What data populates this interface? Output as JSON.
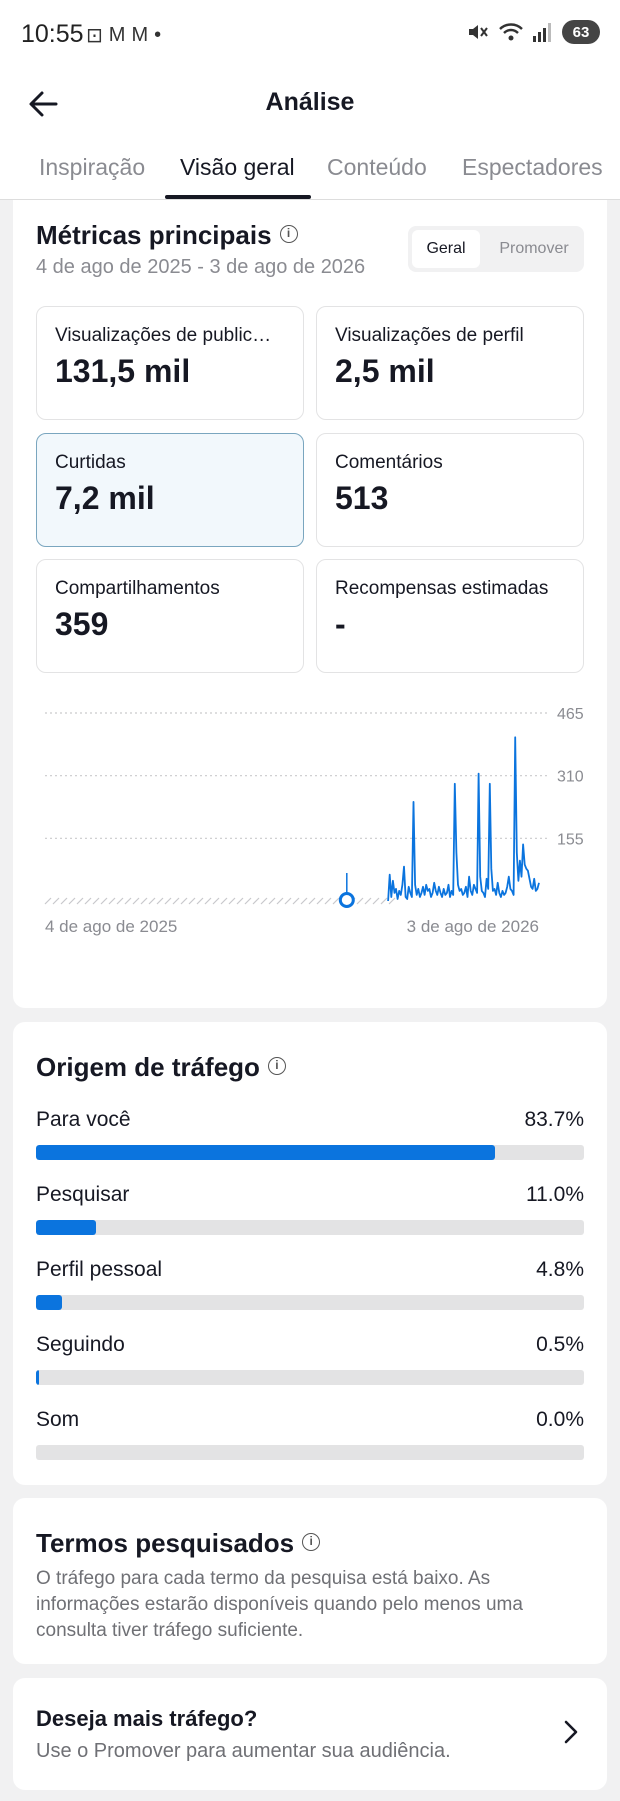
{
  "status": {
    "time": "10:55",
    "battery": "63",
    "left_icons": [
      "⊡",
      "M",
      "M",
      "•"
    ]
  },
  "header": {
    "title": "Análise"
  },
  "tabs": [
    {
      "label": "Inspiração",
      "active": false
    },
    {
      "label": "Visão geral",
      "active": true
    },
    {
      "label": "Conteúdo",
      "active": false
    },
    {
      "label": "Espectadores",
      "active": false
    }
  ],
  "metrics": {
    "title": "Métricas principais",
    "date_range": "4 de ago de 2025 - 3 de ago de 2026",
    "segment": {
      "on": "Geral",
      "off": "Promover"
    },
    "items": [
      {
        "label": "Visualizações de public…",
        "value": "131,5 mil",
        "selected": false
      },
      {
        "label": "Visualizações de perfil",
        "value": "2,5 mil",
        "selected": false
      },
      {
        "label": "Curtidas",
        "value": "7,2 mil",
        "selected": true
      },
      {
        "label": "Comentários",
        "value": "513",
        "selected": false
      },
      {
        "label": "Compartilhamentos",
        "value": "359",
        "selected": false
      },
      {
        "label": "Recompensas estimadas",
        "value": "-",
        "selected": false
      }
    ]
  },
  "chart_data": {
    "type": "line",
    "title": "",
    "xlabel": "",
    "ylabel": "",
    "x_tick_labels": [
      "4 de ago de 2025",
      "3 de ago de 2026"
    ],
    "y_ticks": [
      155,
      310,
      465
    ],
    "ylim": [
      0,
      465
    ],
    "grid": true,
    "series_color": "#0b74de",
    "marker_day": 190,
    "series": [
      {
        "values": [
          0,
          0,
          0,
          0,
          0,
          0,
          0,
          0,
          0,
          0,
          0,
          0,
          0,
          0,
          0,
          0,
          0,
          0,
          0,
          0,
          0,
          0,
          0,
          0,
          0,
          0,
          0,
          0,
          0,
          0,
          0,
          0,
          0,
          0,
          0,
          0,
          0,
          0,
          0,
          0,
          0,
          0,
          0,
          0,
          0,
          0,
          0,
          0,
          0,
          0,
          0,
          0,
          0,
          0,
          0,
          0,
          0,
          0,
          0,
          0,
          0,
          0,
          0,
          0,
          0,
          0,
          0,
          0,
          0,
          0,
          0,
          0,
          0,
          0,
          0,
          0,
          0,
          0,
          0,
          0,
          0,
          0,
          0,
          0,
          0,
          0,
          0,
          0,
          0,
          0,
          0,
          0,
          0,
          0,
          0,
          0,
          0,
          0,
          0,
          0,
          0,
          0,
          0,
          0,
          0,
          0,
          0,
          0,
          0,
          0,
          0,
          0,
          0,
          0,
          0,
          0,
          0,
          0,
          0,
          0,
          0,
          0,
          0,
          0,
          0,
          0,
          0,
          0,
          0,
          0,
          0,
          0,
          0,
          0,
          0,
          0,
          0,
          0,
          0,
          0,
          0,
          0,
          0,
          0,
          0,
          0,
          0,
          0,
          0,
          0,
          0,
          0,
          0,
          0,
          0,
          0,
          0,
          0,
          0,
          0,
          0,
          0,
          0,
          0,
          0,
          0,
          0,
          0,
          0,
          0,
          0,
          0,
          0,
          0,
          0,
          0,
          0,
          0,
          0,
          0,
          0,
          0,
          0,
          0,
          0,
          0,
          0,
          0,
          0,
          0,
          8,
          0,
          0,
          0,
          0,
          0,
          0,
          0,
          0,
          0,
          0,
          0,
          0,
          0,
          0,
          0,
          0,
          0,
          0,
          0,
          0,
          0,
          0,
          0,
          0,
          0,
          0,
          65,
          10,
          50,
          20,
          30,
          5,
          25,
          15,
          40,
          85,
          10,
          5,
          35,
          20,
          10,
          245,
          40,
          15,
          30,
          10,
          20,
          35,
          15,
          40,
          25,
          30,
          10,
          20,
          45,
          25,
          15,
          35,
          20,
          10,
          30,
          15,
          20,
          40,
          10,
          25,
          15,
          290,
          120,
          40,
          25,
          30,
          15,
          20,
          35,
          10,
          60,
          25,
          15,
          40,
          30,
          20,
          315,
          60,
          25,
          20,
          10,
          55,
          30,
          290,
          80,
          25,
          30,
          15,
          45,
          20,
          10,
          25,
          15,
          20,
          35,
          60,
          30,
          25,
          15,
          405,
          120,
          50,
          100,
          60,
          140,
          90,
          80,
          75,
          55,
          35,
          30,
          55,
          25,
          30,
          45
        ]
      }
    ]
  },
  "traffic": {
    "title": "Origem de tráfego",
    "items": [
      {
        "label": "Para você",
        "pct": "83.7%",
        "value": 83.7
      },
      {
        "label": "Pesquisar",
        "pct": "11.0%",
        "value": 11.0
      },
      {
        "label": "Perfil pessoal",
        "pct": "4.8%",
        "value": 4.8
      },
      {
        "label": "Seguindo",
        "pct": "0.5%",
        "value": 0.5
      },
      {
        "label": "Som",
        "pct": "0.0%",
        "value": 0.0
      }
    ]
  },
  "terms": {
    "title": "Termos pesquisados",
    "text": "O tráfego para cada termo da pesquisa está baixo. As informações estarão disponíveis quando pelo menos uma consulta tiver tráfego suficiente."
  },
  "promo": {
    "title": "Deseja mais tráfego?",
    "subtitle": "Use o Promover para aumentar sua audiência."
  }
}
